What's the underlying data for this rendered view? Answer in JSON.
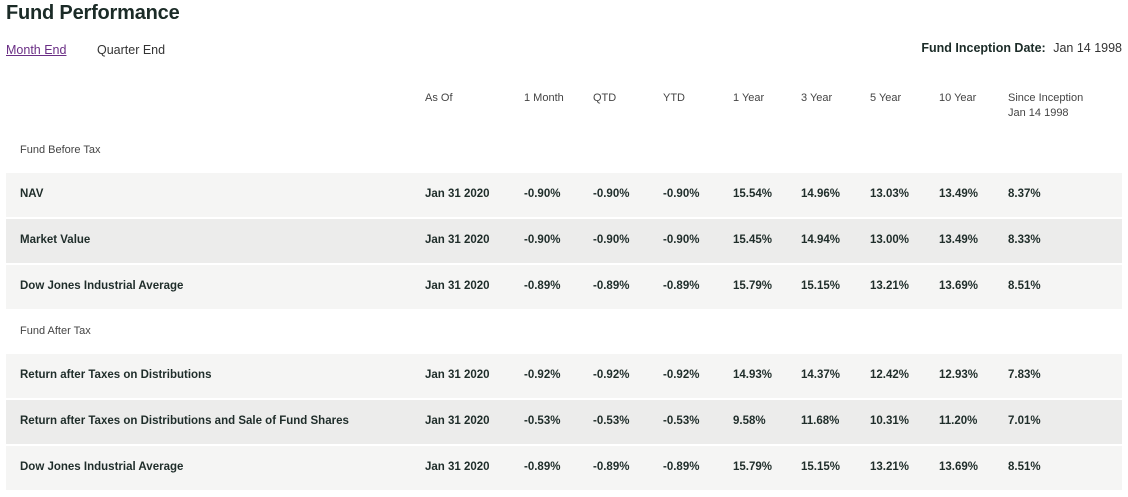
{
  "page": {
    "title": "Fund Performance"
  },
  "tabs": [
    {
      "label": "Month End",
      "active": true
    },
    {
      "label": "Quarter End",
      "active": false
    }
  ],
  "inception": {
    "label": "Fund Inception Date:",
    "value": "Jan 14 1998"
  },
  "columns": {
    "as_of": "As Of",
    "m1": "1 Month",
    "qtd": "QTD",
    "ytd": "YTD",
    "y1": "1 Year",
    "y3": "3 Year",
    "y5": "5 Year",
    "y10": "10 Year",
    "si": "Since Inception",
    "si_date": "Jan 14 1998"
  },
  "sections": [
    {
      "label": "Fund Before Tax",
      "rows": [
        {
          "name": "NAV",
          "as_of": "Jan 31 2020",
          "m1": "-0.90%",
          "qtd": "-0.90%",
          "ytd": "-0.90%",
          "y1": "15.54%",
          "y3": "14.96%",
          "y5": "13.03%",
          "y10": "13.49%",
          "si": "8.37%"
        },
        {
          "name": "Market Value",
          "as_of": "Jan 31 2020",
          "m1": "-0.90%",
          "qtd": "-0.90%",
          "ytd": "-0.90%",
          "y1": "15.45%",
          "y3": "14.94%",
          "y5": "13.00%",
          "y10": "13.49%",
          "si": "8.33%"
        },
        {
          "name": "Dow Jones Industrial Average",
          "as_of": "Jan 31 2020",
          "m1": "-0.89%",
          "qtd": "-0.89%",
          "ytd": "-0.89%",
          "y1": "15.79%",
          "y3": "15.15%",
          "y5": "13.21%",
          "y10": "13.69%",
          "si": "8.51%"
        }
      ]
    },
    {
      "label": "Fund After Tax",
      "rows": [
        {
          "name": "Return after Taxes on Distributions",
          "as_of": "Jan 31 2020",
          "m1": "-0.92%",
          "qtd": "-0.92%",
          "ytd": "-0.92%",
          "y1": "14.93%",
          "y3": "14.37%",
          "y5": "12.42%",
          "y10": "12.93%",
          "si": "7.83%"
        },
        {
          "name": "Return after Taxes on Distributions and Sale of Fund Shares",
          "as_of": "Jan 31 2020",
          "m1": "-0.53%",
          "qtd": "-0.53%",
          "ytd": "-0.53%",
          "y1": "9.58%",
          "y3": "11.68%",
          "y5": "10.31%",
          "y10": "11.20%",
          "si": "7.01%"
        },
        {
          "name": "Dow Jones Industrial Average",
          "as_of": "Jan 31 2020",
          "m1": "-0.89%",
          "qtd": "-0.89%",
          "ytd": "-0.89%",
          "y1": "15.79%",
          "y3": "15.15%",
          "y5": "13.21%",
          "y10": "13.69%",
          "si": "8.51%"
        }
      ]
    }
  ]
}
